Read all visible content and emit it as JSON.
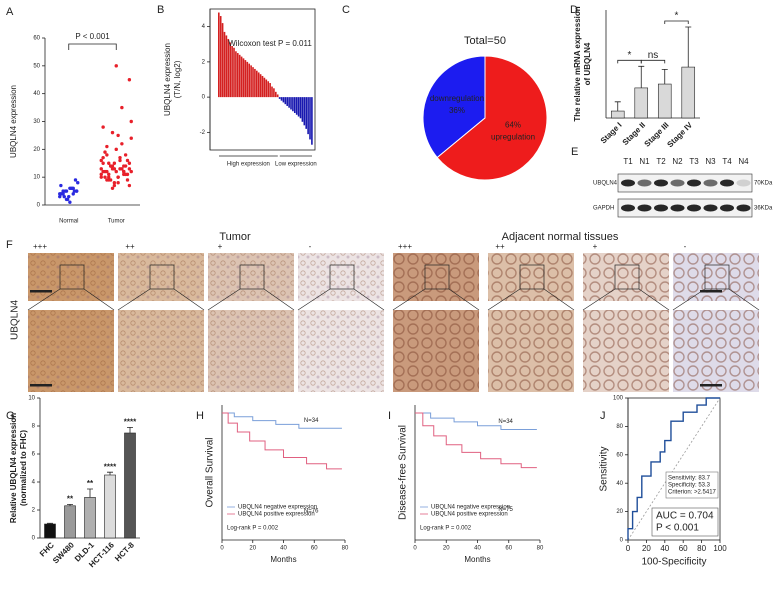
{
  "chart_data": [
    {
      "panel": "A",
      "type": "dotplot",
      "y_label": "UBQLN4 expression",
      "annotation": "P < 0.001",
      "categories": [
        "Normal",
        "Tumor"
      ],
      "colors": [
        "#2a2ae0",
        "#e8202a"
      ],
      "ylim": [
        0,
        60
      ],
      "yticks": [
        0,
        10,
        20,
        30,
        40,
        50,
        60
      ],
      "values": [
        [
          3,
          4,
          5,
          6,
          4,
          5,
          7,
          3,
          2,
          6,
          5,
          8,
          4,
          5,
          3,
          6,
          9,
          4,
          5,
          2,
          1,
          6,
          5,
          4
        ],
        [
          10,
          12,
          14,
          8,
          11,
          13,
          15,
          9,
          7,
          16,
          18,
          12,
          10,
          14,
          20,
          22,
          11,
          13,
          9,
          6,
          25,
          12,
          15,
          17,
          10,
          8,
          13,
          11,
          30,
          19,
          14,
          12,
          35,
          9,
          16,
          21,
          13,
          10,
          12,
          45,
          28,
          11,
          15,
          17,
          14,
          24,
          12,
          9,
          50,
          13,
          16,
          11,
          18,
          26,
          10,
          14,
          7,
          12,
          15,
          13
        ]
      ]
    },
    {
      "panel": "B",
      "type": "waterfall",
      "y_label": [
        "UBQLN4 expression",
        "(T/N, log2)"
      ],
      "annotation": "Wilcoxon test P = 0.011",
      "group_labels": [
        "High expression",
        "Low expression"
      ],
      "color_positive": "#d42020",
      "color_negative": "#1818b0",
      "ylim": [
        -3,
        5
      ],
      "yticks": [
        -2,
        0,
        2,
        4
      ],
      "values": [
        4.8,
        4.6,
        4.2,
        3.7,
        3.5,
        3.3,
        3.1,
        2.9,
        2.8,
        2.6,
        2.5,
        2.4,
        2.3,
        2.2,
        2.1,
        2.0,
        1.9,
        1.8,
        1.7,
        1.6,
        1.5,
        1.4,
        1.3,
        1.2,
        1.1,
        1.0,
        0.9,
        0.8,
        0.6,
        0.5,
        0.3,
        0.15,
        -0.1,
        -0.2,
        -0.3,
        -0.4,
        -0.5,
        -0.6,
        -0.7,
        -0.8,
        -0.9,
        -1.0,
        -1.1,
        -1.2,
        -1.4,
        -1.6,
        -1.8,
        -2.1,
        -2.4,
        -2.7
      ]
    },
    {
      "panel": "C",
      "type": "pie",
      "title": "Total=50",
      "labels": [
        "downregulation",
        "upregulation"
      ],
      "values": [
        36,
        64
      ],
      "value_labels": [
        "36%",
        "64%"
      ],
      "colors": [
        "#1c1cf0",
        "#ee1c1c"
      ]
    },
    {
      "panel": "D",
      "type": "bar_error",
      "y_label": [
        "The relative mRNA expression",
        "of UBQLN4"
      ],
      "categories": [
        "Stage I",
        "Stage II",
        "Stage III",
        "Stage IV"
      ],
      "values": [
        0.9,
        3.9,
        4.4,
        6.6
      ],
      "errors": [
        1.2,
        2.8,
        1.9,
        5.2
      ],
      "comparison_labels": [
        "*",
        "ns",
        "*"
      ],
      "color": "#d9d9d9",
      "ylim": [
        0,
        14
      ]
    },
    {
      "panel": "G",
      "type": "bar_error",
      "y_label": [
        "Relative UBQLN4 expression",
        "(normalized to FHC)"
      ],
      "categories": [
        "FHC",
        "SW480",
        "DLD-1",
        "HCT-116",
        "HCT-8"
      ],
      "values": [
        1,
        2.3,
        2.9,
        4.5,
        7.5
      ],
      "errors": [
        0.05,
        0.1,
        0.6,
        0.2,
        0.4
      ],
      "significance": [
        null,
        "**",
        "**",
        "****",
        "****"
      ],
      "colors": [
        "#111111",
        "#9a9a9a",
        "#b0b0b0",
        "#dcdcdc",
        "#555555"
      ],
      "ylim": [
        0,
        10
      ],
      "yticks": [
        0,
        2,
        4,
        6,
        8,
        10
      ]
    },
    {
      "panel": "H",
      "type": "survival",
      "x_label": "Months",
      "y_label": "Overall Survival",
      "annotation": "Log-rank P = 0.002",
      "xlim": [
        0,
        80
      ],
      "xticks": [
        0,
        20,
        40,
        60,
        80
      ],
      "ylim": [
        0,
        1
      ],
      "series": [
        {
          "name": "UBQLN4 negative expression",
          "n_label": "N=34",
          "color": "#7a9fd9",
          "x": [
            0,
            8,
            8,
            20,
            20,
            35,
            35,
            50,
            50,
            78
          ],
          "values": [
            1,
            1,
            0.97,
            0.97,
            0.94,
            0.94,
            0.91,
            0.91,
            0.88,
            0.88
          ]
        },
        {
          "name": "UBQLN4 positive expression",
          "n_label": "N=76",
          "color": "#e06080",
          "x": [
            0,
            4,
            4,
            10,
            10,
            18,
            18,
            28,
            28,
            40,
            40,
            55,
            55,
            68,
            68,
            78
          ],
          "values": [
            1,
            1,
            0.92,
            0.92,
            0.85,
            0.85,
            0.78,
            0.78,
            0.71,
            0.71,
            0.65,
            0.65,
            0.6,
            0.6,
            0.56,
            0.56
          ]
        }
      ]
    },
    {
      "panel": "I",
      "type": "survival",
      "x_label": "Months",
      "y_label": "Disease-free Survival",
      "annotation": "Log-rank P = 0.002",
      "xlim": [
        0,
        80
      ],
      "xticks": [
        0,
        20,
        40,
        60,
        80
      ],
      "ylim": [
        0,
        1
      ],
      "series": [
        {
          "name": "UBQLN4 negative expression",
          "n_label": "N=34",
          "color": "#7a9fd9",
          "x": [
            0,
            10,
            10,
            25,
            25,
            40,
            40,
            55,
            55,
            78
          ],
          "values": [
            1,
            1,
            0.96,
            0.96,
            0.93,
            0.93,
            0.9,
            0.9,
            0.87,
            0.87
          ]
        },
        {
          "name": "UBQLN4 positive expression",
          "n_label": "N=75",
          "color": "#e06080",
          "x": [
            0,
            5,
            5,
            12,
            12,
            20,
            20,
            30,
            30,
            42,
            42,
            55,
            55,
            68,
            68,
            78
          ],
          "values": [
            1,
            1,
            0.9,
            0.9,
            0.82,
            0.82,
            0.75,
            0.75,
            0.69,
            0.69,
            0.64,
            0.64,
            0.6,
            0.6,
            0.57,
            0.57
          ]
        }
      ]
    },
    {
      "panel": "J",
      "type": "roc",
      "x_label": "100-Specificity",
      "y_label": "Sensitivity",
      "color": "#1f4e9a",
      "xlim": [
        0,
        100
      ],
      "ylim": [
        0,
        100
      ],
      "xticks": [
        0,
        20,
        40,
        60,
        80,
        100
      ],
      "yticks": [
        0,
        20,
        40,
        60,
        80,
        100
      ],
      "x": [
        0,
        0,
        5,
        5,
        10,
        10,
        15,
        15,
        25,
        25,
        35,
        35,
        40,
        40,
        46.7,
        46.7,
        60,
        60,
        75,
        75,
        85,
        85,
        100
      ],
      "values": [
        0,
        8,
        8,
        20,
        20,
        30,
        30,
        45,
        45,
        55,
        55,
        62,
        62,
        70,
        70,
        83.7,
        83.7,
        90,
        90,
        95,
        95,
        100,
        100
      ],
      "criterion_box": [
        "Sensitivity: 83.7",
        "Specificity: 53.3",
        "Criterion: >2.5417"
      ],
      "stats": [
        "AUC = 0.704",
        "P < 0.001"
      ]
    }
  ],
  "western_blot": {
    "panel": "E",
    "lanes": [
      "T1",
      "N1",
      "T2",
      "N2",
      "T3",
      "N3",
      "T4",
      "N4"
    ],
    "rows": [
      {
        "name": "UBQLN4",
        "size": "70KDa"
      },
      {
        "name": "GAPDH",
        "size": "36KDa"
      }
    ]
  },
  "histology": {
    "panel": "F",
    "stain": "UBQLN4",
    "groups": [
      {
        "title": "Tumor",
        "grades": [
          "+++",
          "++",
          "+",
          "-"
        ]
      },
      {
        "title": "Adjacent normal tissues",
        "grades": [
          "+++",
          "++",
          "+",
          "-"
        ]
      }
    ]
  }
}
